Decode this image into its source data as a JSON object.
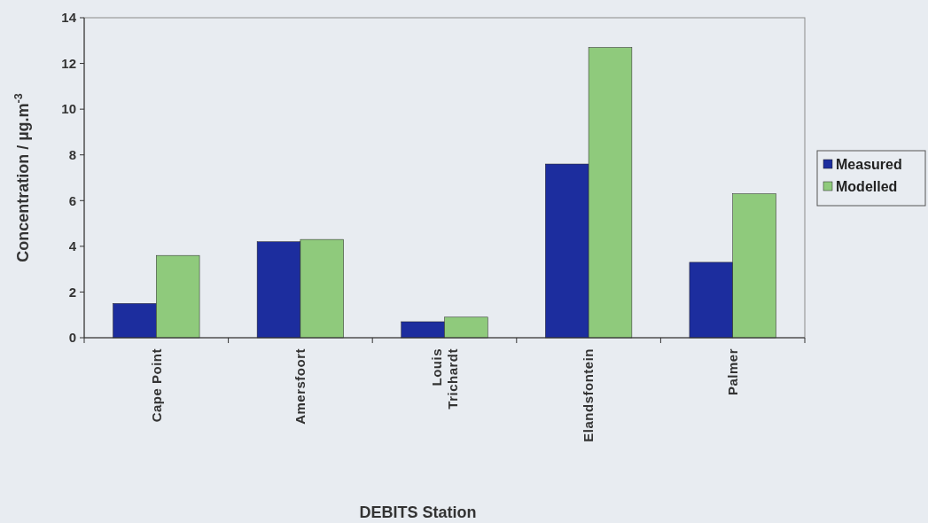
{
  "chart_data": {
    "type": "bar",
    "xlabel": "DEBITS Station",
    "ylabel": "Concentration / µg.m$^{-3}$",
    "categories": [
      "Cape Point",
      "Amersfoort",
      "Louis Trichardt",
      "Elandsfontein",
      "Palmer"
    ],
    "series": [
      {
        "name": "Measured",
        "color": "#1c2d9e",
        "values": [
          1.5,
          4.2,
          0.7,
          7.6,
          3.3
        ]
      },
      {
        "name": "Modelled",
        "color": "#8fca7c",
        "values": [
          3.6,
          4.3,
          0.9,
          12.7,
          6.3
        ]
      }
    ],
    "ylim": [
      0,
      14
    ],
    "yticks": [
      0,
      2,
      4,
      6,
      8,
      10,
      12,
      14
    ],
    "grid": false,
    "legend": "right"
  }
}
